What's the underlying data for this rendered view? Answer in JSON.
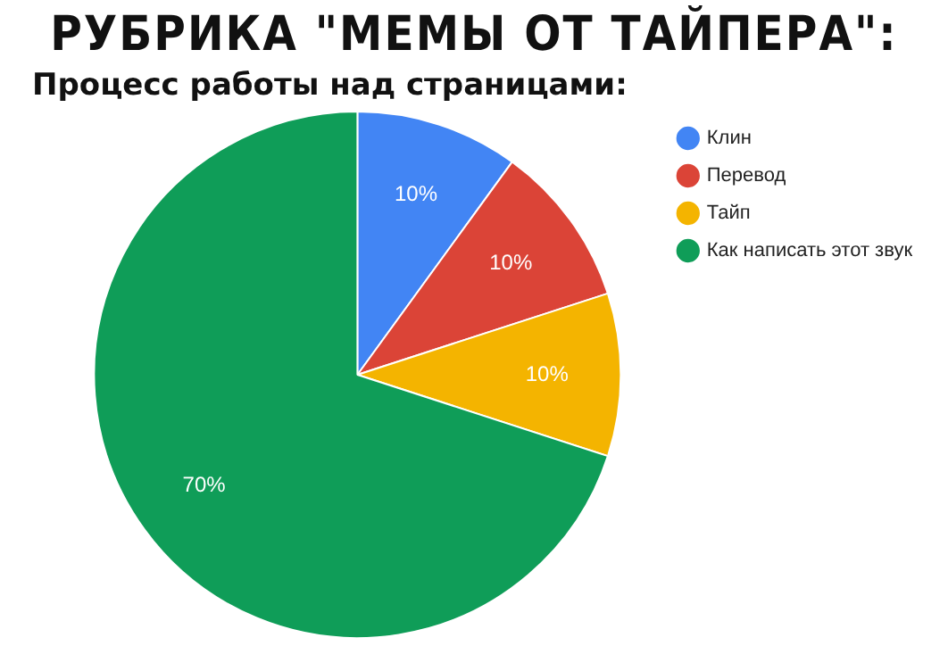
{
  "chart_data": {
    "type": "pie",
    "title": "РУБРИКА \"МЕМЫ ОТ ТАЙПЕРА\":",
    "subtitle": "Процесс работы над страницами:",
    "categories": [
      "Клин",
      "Перевод",
      "Тайп",
      "Как написать этот звук"
    ],
    "values": [
      10,
      10,
      10,
      70
    ],
    "value_labels": [
      "10%",
      "10%",
      "10%",
      "70%"
    ],
    "colors": [
      "#4285f4",
      "#db4437",
      "#f4b400",
      "#0f9d58"
    ],
    "legend": "right"
  }
}
